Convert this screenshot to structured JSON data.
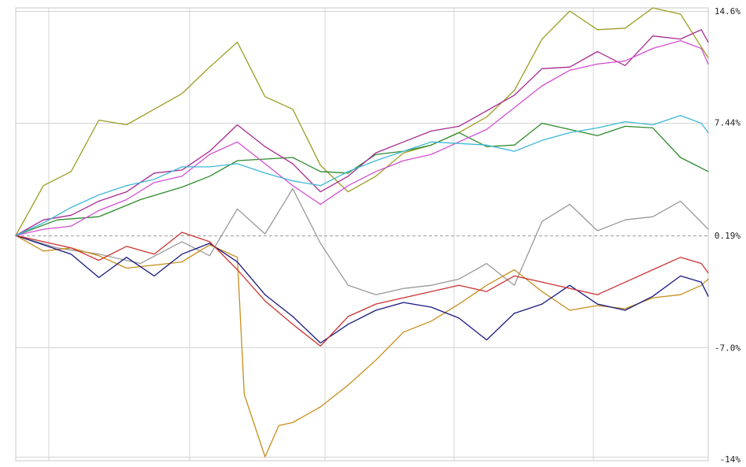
{
  "chart_data": {
    "type": "line",
    "title": "",
    "xlabel": "",
    "ylabel": "",
    "ylim": [
      -14,
      14.6
    ],
    "y_ticks": [
      "14.6%",
      "7.44%",
      "0.19%",
      "-7.0%",
      "-14%"
    ],
    "y_tick_values": [
      14.6,
      7.44,
      0.19,
      -7.0,
      -14
    ],
    "reference_value": 0.19,
    "x_index_range": [
      0,
      100
    ],
    "x_grid_count": 6,
    "grid": true,
    "legend": "none",
    "series": [
      {
        "color": "#999999",
        "x": [
          0,
          6,
          12,
          18,
          24,
          28,
          32,
          36,
          40,
          44,
          48,
          52,
          56,
          60,
          64,
          68,
          72,
          76,
          80,
          84,
          88,
          92,
          96,
          100
        ],
        "values": [
          0.2,
          -0.6,
          -1.0,
          -1.6,
          -0.2,
          -1.1,
          1.9,
          0.3,
          3.2,
          -0.3,
          -3.0,
          -3.6,
          -3.2,
          -3.0,
          -2.6,
          -1.6,
          -3.0,
          1.1,
          2.2,
          0.5,
          1.2,
          1.4,
          2.4,
          0.6
        ]
      },
      {
        "color": "#9d9d24",
        "x": [
          0,
          4,
          8,
          12,
          16,
          20,
          24,
          28,
          32,
          36,
          40,
          44,
          48,
          52,
          56,
          60,
          64,
          68,
          72,
          76,
          80,
          84,
          88,
          92,
          96,
          100
        ],
        "values": [
          0.2,
          3.4,
          4.3,
          7.6,
          7.3,
          8.3,
          9.3,
          11.0,
          12.6,
          9.1,
          8.3,
          4.7,
          3.0,
          4.0,
          5.5,
          6.0,
          6.8,
          7.8,
          9.5,
          12.8,
          14.6,
          13.4,
          13.5,
          14.8,
          14.4,
          11.6
        ]
      },
      {
        "color": "#c88e1c",
        "x": [
          0,
          4,
          8,
          12,
          16,
          20,
          24,
          28,
          32,
          33,
          36,
          38,
          40,
          44,
          48,
          52,
          56,
          60,
          64,
          68,
          72,
          76,
          80,
          84,
          88,
          92,
          96,
          99,
          100
        ],
        "values": [
          0.2,
          -0.8,
          -0.6,
          -1.1,
          -1.9,
          -1.7,
          -1.5,
          -0.4,
          -1.2,
          -10.0,
          -14.0,
          -12.0,
          -11.8,
          -10.8,
          -9.4,
          -7.8,
          -6.0,
          -5.3,
          -4.2,
          -3.0,
          -2.0,
          -3.4,
          -4.6,
          -4.3,
          -4.5,
          -3.8,
          -3.6,
          -3.0,
          -2.6
        ]
      },
      {
        "color": "#1a1a80",
        "x": [
          0,
          4,
          8,
          12,
          16,
          20,
          24,
          28,
          32,
          36,
          40,
          44,
          48,
          52,
          56,
          60,
          64,
          68,
          72,
          76,
          80,
          84,
          88,
          92,
          96,
          99,
          100
        ],
        "values": [
          0.2,
          -0.4,
          -1.0,
          -2.5,
          -1.2,
          -2.4,
          -1.0,
          -0.3,
          -1.5,
          -3.6,
          -5.0,
          -6.7,
          -5.5,
          -4.6,
          -4.1,
          -4.4,
          -5.1,
          -6.5,
          -4.8,
          -4.2,
          -3.0,
          -4.2,
          -4.6,
          -3.7,
          -2.4,
          -2.8,
          -3.7
        ]
      },
      {
        "color": "#cc3333",
        "x": [
          0,
          4,
          8,
          12,
          16,
          20,
          24,
          28,
          32,
          36,
          40,
          44,
          48,
          52,
          56,
          60,
          64,
          68,
          72,
          76,
          80,
          84,
          88,
          92,
          96,
          99,
          100
        ],
        "values": [
          0.2,
          -0.2,
          -0.6,
          -1.4,
          -0.5,
          -1.0,
          0.4,
          -0.2,
          -2.0,
          -4.0,
          -5.5,
          -6.9,
          -5.0,
          -4.2,
          -3.8,
          -3.4,
          -3.0,
          -3.4,
          -2.4,
          -2.8,
          -3.2,
          -3.6,
          -2.8,
          -2.0,
          -1.2,
          -1.6,
          -2.2
        ]
      },
      {
        "color": "#2e8a2e",
        "x": [
          0,
          6,
          12,
          18,
          24,
          28,
          32,
          36,
          40,
          44,
          48,
          52,
          56,
          60,
          64,
          68,
          72,
          76,
          80,
          84,
          88,
          92,
          96,
          100
        ],
        "values": [
          0.2,
          1.2,
          1.4,
          2.5,
          3.3,
          4.0,
          5.0,
          5.1,
          5.2,
          4.3,
          4.2,
          5.4,
          5.6,
          6.0,
          6.8,
          5.9,
          6.0,
          7.4,
          7.0,
          6.6,
          7.2,
          7.1,
          5.2,
          4.3
        ]
      },
      {
        "color": "#a82a92",
        "x": [
          0,
          4,
          8,
          12,
          16,
          20,
          24,
          28,
          32,
          36,
          40,
          44,
          48,
          52,
          56,
          60,
          64,
          68,
          72,
          76,
          80,
          84,
          88,
          92,
          96,
          99,
          100
        ],
        "values": [
          0.2,
          1.2,
          1.5,
          2.4,
          3.0,
          4.2,
          4.4,
          5.6,
          7.3,
          5.9,
          4.8,
          3.0,
          4.0,
          5.5,
          6.2,
          6.9,
          7.2,
          8.2,
          9.2,
          10.9,
          11.0,
          12.0,
          11.1,
          13.0,
          12.8,
          13.4,
          12.6
        ]
      },
      {
        "color": "#d24fd2",
        "x": [
          0,
          4,
          8,
          12,
          16,
          20,
          24,
          28,
          32,
          36,
          40,
          44,
          48,
          52,
          56,
          60,
          64,
          68,
          72,
          76,
          80,
          84,
          88,
          92,
          96,
          99,
          100
        ],
        "values": [
          0.2,
          0.6,
          0.8,
          1.8,
          2.5,
          3.6,
          4.0,
          5.4,
          6.2,
          4.8,
          3.4,
          2.2,
          3.4,
          4.3,
          5.0,
          5.4,
          6.2,
          7.0,
          8.4,
          9.8,
          10.8,
          11.2,
          11.4,
          12.2,
          12.7,
          12.2,
          11.2
        ]
      },
      {
        "color": "#3db8d8",
        "x": [
          0,
          4,
          8,
          12,
          16,
          20,
          24,
          28,
          32,
          36,
          40,
          44,
          48,
          52,
          56,
          60,
          64,
          68,
          72,
          76,
          80,
          84,
          88,
          92,
          96,
          99,
          100
        ],
        "values": [
          0.2,
          1.0,
          2.0,
          2.8,
          3.4,
          3.8,
          4.6,
          4.6,
          4.8,
          4.2,
          3.7,
          3.4,
          4.3,
          5.0,
          5.6,
          6.2,
          6.1,
          6.0,
          5.6,
          6.3,
          6.8,
          7.1,
          7.5,
          7.3,
          7.9,
          7.4,
          6.8
        ]
      }
    ]
  }
}
